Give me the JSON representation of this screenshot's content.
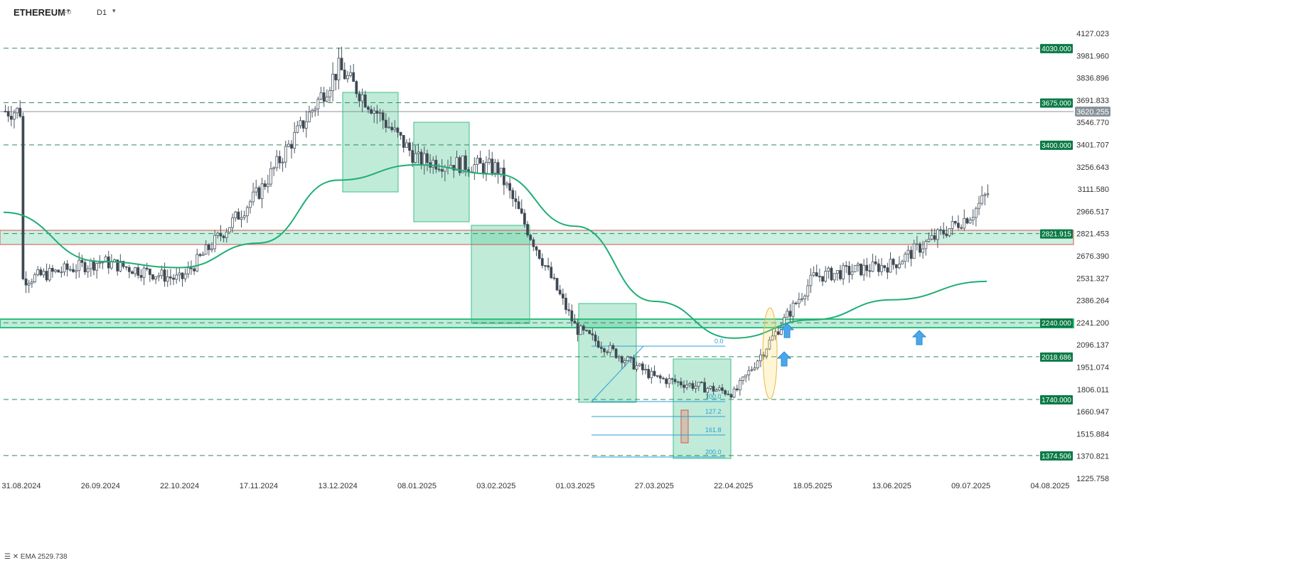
{
  "toolbar": {
    "symbol": "ETHEREUM",
    "instrument_type": "CFD",
    "timeframe": "D1"
  },
  "legend": {
    "ema_label": "EMA",
    "ema_value": "2529.738"
  },
  "chart_data": {
    "type": "candlestick",
    "x_tick_labels": [
      "31.08.2024",
      "26.09.2024",
      "22.10.2024",
      "17.11.2024",
      "13.12.2024",
      "08.01.2025",
      "03.02.2025",
      "01.03.2025",
      "27.03.2025",
      "22.04.2025",
      "18.05.2025",
      "13.06.2025",
      "09.07.2025",
      "04.08.2025"
    ],
    "y_tick_labels": [
      "4127.023",
      "3981.960",
      "3836.896",
      "3691.833",
      "3546.770",
      "3401.707",
      "3256.643",
      "3111.580",
      "2966.517",
      "2821.453",
      "2676.390",
      "2531.327",
      "2386.264",
      "2241.200",
      "2096.137",
      "1951.074",
      "1806.011",
      "1660.947",
      "1515.884",
      "1370.821",
      "1225.758"
    ],
    "ylim": [
      1225.758,
      4127.023
    ],
    "grid": false,
    "colors": {
      "up": "#ffffff",
      "down": "#3b4650",
      "wick": "#4a545e",
      "ema": "#1fae74",
      "level": "#2e8b5f",
      "level_label_bg": "#0b7a45",
      "current_price_bg": "#8a9399"
    },
    "current_price": "3620.255",
    "horizontal_levels": [
      {
        "value": 4030.0,
        "label": "4030.000"
      },
      {
        "value": 3675.0,
        "label": "3675.000"
      },
      {
        "value": 3400.0,
        "label": "3400.000"
      },
      {
        "value": 2821.915,
        "label": "2821.915"
      },
      {
        "value": 2240.0,
        "label": "2240.000"
      },
      {
        "value": 2018.686,
        "label": "2018.686"
      },
      {
        "value": 1740.0,
        "label": "1740.000"
      },
      {
        "value": 1374.506,
        "label": "1374.506"
      }
    ],
    "fibonacci_labels": [
      "0.0",
      "100.0",
      "127.2",
      "161.8",
      "200.0"
    ],
    "ema": {
      "name": "EMA",
      "points": [
        [
          "31.08.2024",
          2960
        ],
        [
          "26.09.2024",
          2640
        ],
        [
          "22.10.2024",
          2600
        ],
        [
          "17.11.2024",
          2760
        ],
        [
          "13.12.2024",
          3170
        ],
        [
          "08.01.2025",
          3270
        ],
        [
          "03.02.2025",
          3210
        ],
        [
          "01.03.2025",
          2870
        ],
        [
          "27.03.2025",
          2380
        ],
        [
          "22.04.2025",
          2140
        ],
        [
          "18.05.2025",
          2260
        ],
        [
          "13.06.2025",
          2390
        ],
        [
          "09.07.2025",
          2510
        ]
      ]
    },
    "price": {
      "points": [
        [
          "31.08.2024",
          2520
        ],
        [
          "26.09.2024",
          2640
        ],
        [
          "22.10.2024",
          2520
        ],
        [
          "17.11.2024",
          3100
        ],
        [
          "13.12.2024",
          3900
        ],
        [
          "08.01.2025",
          3300
        ],
        [
          "03.02.2025",
          3250
        ],
        [
          "01.03.2025",
          2200
        ],
        [
          "27.03.2025",
          1880
        ],
        [
          "22.04.2025",
          1780
        ],
        [
          "18.05.2025",
          2540
        ],
        [
          "13.06.2025",
          2620
        ],
        [
          "09.07.2025",
          2950
        ],
        [
          "04.08.2025",
          3620
        ]
      ]
    }
  }
}
